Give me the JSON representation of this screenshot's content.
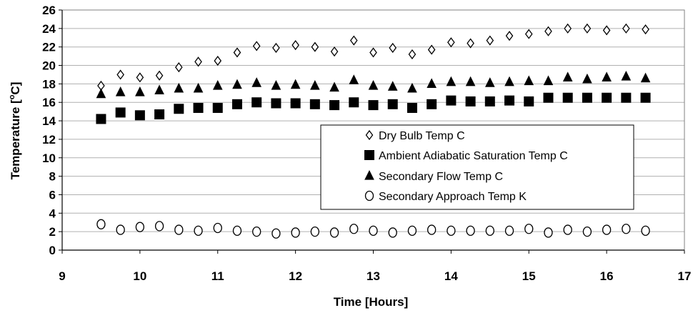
{
  "chart_data": {
    "type": "scatter",
    "xlabel": "Time [Hours]",
    "ylabel_parts": {
      "prefix": "Temperature [",
      "sup": "o",
      "suffix": "C]"
    },
    "xlim": [
      9,
      17
    ],
    "ylim": [
      0,
      26
    ],
    "x_ticks": [
      "9",
      "10",
      "11",
      "12",
      "13",
      "14",
      "15",
      "16",
      "17"
    ],
    "y_ticks": [
      "0",
      "2",
      "4",
      "6",
      "8",
      "10",
      "12",
      "14",
      "16",
      "18",
      "20",
      "22",
      "24",
      "26"
    ],
    "grid": "horizontal",
    "legend_position": "inside-right",
    "x": [
      9.5,
      9.75,
      10,
      10.25,
      10.5,
      10.75,
      11,
      11.25,
      11.5,
      11.75,
      12,
      12.25,
      12.5,
      12.75,
      13,
      13.25,
      13.5,
      13.75,
      14,
      14.25,
      14.5,
      14.75,
      15,
      15.25,
      15.5,
      15.75,
      16,
      16.25,
      16.5
    ],
    "series": [
      {
        "name": "Dry Bulb Temp  C",
        "marker": "diamond-open",
        "values": [
          17.8,
          19.0,
          18.7,
          18.9,
          19.8,
          20.4,
          20.5,
          21.4,
          22.1,
          21.9,
          22.2,
          22.0,
          21.5,
          22.7,
          21.4,
          21.9,
          21.2,
          21.7,
          22.5,
          22.4,
          22.7,
          23.2,
          23.4,
          23.7,
          24.0,
          24.0,
          23.8,
          24.0,
          23.9
        ]
      },
      {
        "name": "Ambient Adiabatic Saturation Temp C",
        "marker": "square-filled",
        "values": [
          14.2,
          14.9,
          14.6,
          14.7,
          15.3,
          15.4,
          15.4,
          15.8,
          16.0,
          15.9,
          15.9,
          15.8,
          15.7,
          16.0,
          15.7,
          15.8,
          15.4,
          15.8,
          16.2,
          16.1,
          16.1,
          16.2,
          16.1,
          16.5,
          16.5,
          16.5,
          16.5,
          16.5,
          16.5
        ]
      },
      {
        "name": "Secondary Flow Temp C",
        "marker": "triangle-filled",
        "values": [
          16.9,
          17.1,
          17.1,
          17.3,
          17.5,
          17.5,
          17.8,
          17.9,
          18.1,
          17.8,
          17.9,
          17.8,
          17.6,
          18.4,
          17.8,
          17.7,
          17.5,
          18.0,
          18.2,
          18.2,
          18.1,
          18.2,
          18.3,
          18.3,
          18.7,
          18.5,
          18.7,
          18.8,
          18.6
        ]
      },
      {
        "name": "Secondary Approach Temp K",
        "marker": "circle-open",
        "values": [
          2.8,
          2.2,
          2.5,
          2.6,
          2.2,
          2.1,
          2.4,
          2.1,
          2.0,
          1.8,
          1.9,
          2.0,
          1.9,
          2.3,
          2.1,
          1.9,
          2.1,
          2.2,
          2.1,
          2.1,
          2.1,
          2.1,
          2.3,
          1.9,
          2.2,
          2.0,
          2.2,
          2.3,
          2.1
        ]
      }
    ]
  }
}
